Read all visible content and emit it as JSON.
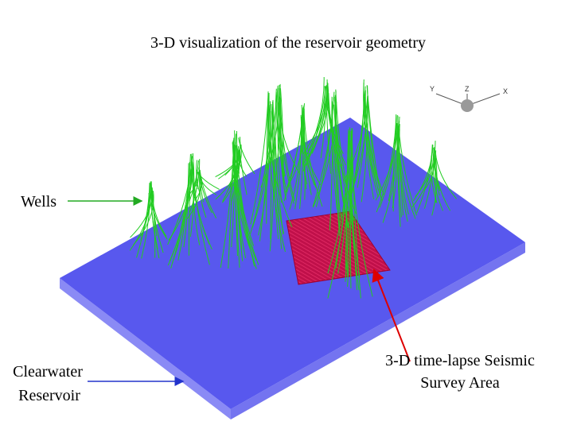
{
  "title": "3-D visualization of the reservoir geometry",
  "labels": {
    "wells": "Wells",
    "reservoir": [
      "Clearwater",
      "Reservoir"
    ],
    "seismic": [
      "3-D time-lapse Seismic",
      "Survey Area"
    ]
  },
  "triad": [
    "Y",
    "Z",
    "X"
  ]
}
